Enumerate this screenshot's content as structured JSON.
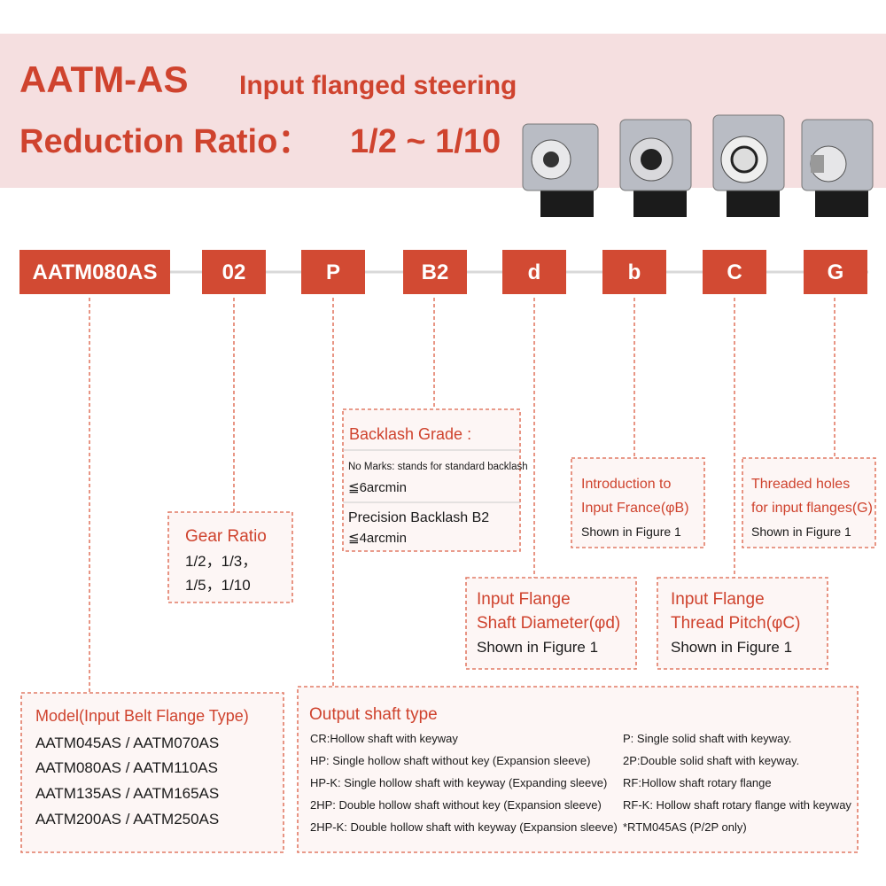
{
  "header": {
    "title": "AATM-AS",
    "subtitle": "Input flanged steering",
    "ratio_label": "Reduction Ratio：",
    "ratio_value": "1/2 ~ 1/10"
  },
  "code": [
    "AATM080AS",
    "02",
    "P",
    "B2",
    "d",
    "b",
    "C",
    "G"
  ],
  "gear_ratio": {
    "title": "Gear Ratio",
    "lines": [
      "1/2，1/3，",
      "1/5，1/10"
    ]
  },
  "backlash": {
    "title": "Backlash Grade :",
    "standard": "No Marks: stands for standard backlash",
    "standard_value": "≦6arcmin",
    "precision": "Precision Backlash B2",
    "precision_value": "≦4arcmin"
  },
  "input_flange": {
    "lines": [
      "Introduction to",
      "Input France(φB)"
    ],
    "note": "Shown in Figure 1"
  },
  "threaded_holes": {
    "lines": [
      "Threaded holes",
      "for input flanges(G)"
    ],
    "note": "Shown in Figure 1"
  },
  "shaft_diameter": {
    "lines": [
      "Input Flange",
      "Shaft Diameter(φd)"
    ],
    "note": "Shown in Figure 1"
  },
  "thread_pitch": {
    "lines": [
      "Input Flange",
      "Thread Pitch(φC)"
    ],
    "note": "Shown in Figure 1"
  },
  "model": {
    "title": "Model(Input Belt Flange Type)",
    "lines": [
      "AATM045AS / AATM070AS",
      "AATM080AS / AATM110AS",
      "AATM135AS / AATM165AS",
      "AATM200AS / AATM250AS"
    ]
  },
  "output_shaft": {
    "title": "Output shaft type",
    "left": [
      "CR:Hollow shaft with keyway",
      "HP: Single hollow shaft without key (Expansion sleeve)",
      "HP-K: Single hollow shaft with keyway (Expanding sleeve)",
      "2HP: Double hollow shaft without key (Expansion sleeve)",
      "2HP-K: Double hollow shaft with keyway (Expansion sleeve)"
    ],
    "right": [
      "P: Single solid shaft with keyway.",
      "2P:Double solid shaft with keyway.",
      "RF:Hollow shaft rotary flange",
      "RF-K: Hollow shaft rotary flange with keyway",
      "*RTM045AS (P/2P only)"
    ]
  }
}
